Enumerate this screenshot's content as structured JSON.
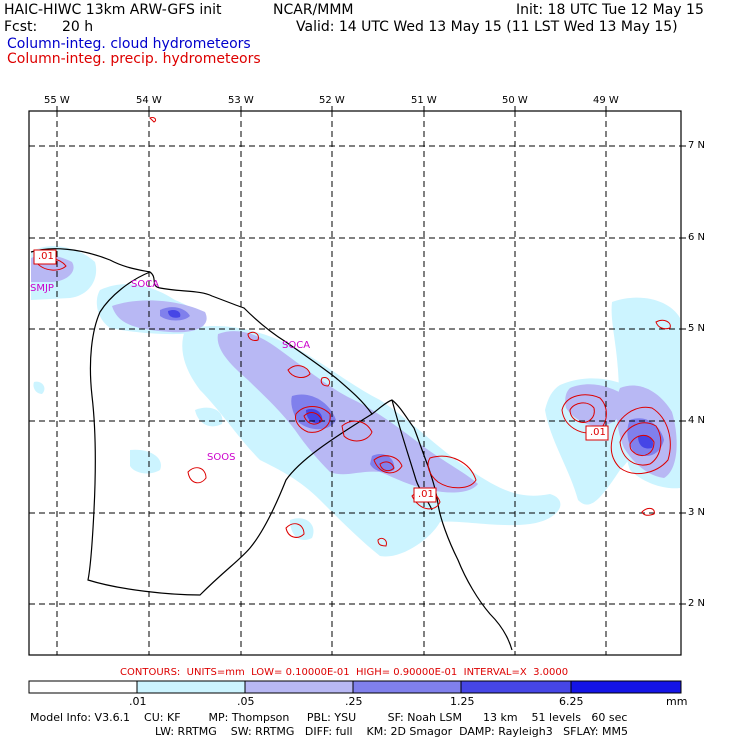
{
  "header": {
    "model_title": "HAIC-HIWC 13km ARW-GFS init",
    "org": "NCAR/MMM",
    "init": "Init: 18 UTC Tue 12 May 15",
    "fcst_label": "Fcst:",
    "fcst_value": "20 h",
    "valid": "Valid: 14 UTC Wed 13 May 15 (11 LST Wed 13 May 15)",
    "field_cloud": "Column-integ. cloud hydrometeors",
    "field_precip": "Column-integ. precip. hydrometeors"
  },
  "colors": {
    "cloud_text": "#0000cc",
    "precip_text": "#dd0000",
    "station_text": "#cc00cc",
    "shade_1": "#ccf4ff",
    "shade_2": "#b8b8f4",
    "shade_3": "#8080ec",
    "shade_4": "#4646e6",
    "shade_5": "#1414e6"
  },
  "map": {
    "lon_labels": [
      "55 W",
      "54 W",
      "53 W",
      "52 W",
      "51 W",
      "50 W",
      "49 W"
    ],
    "lat_labels": [
      "7 N",
      "6 N",
      "5 N",
      "4 N",
      "3 N",
      "2 N"
    ],
    "stations": [
      "SMJP",
      "SOCA",
      "SOCA",
      "SOOS"
    ],
    "contour_labels": [
      ".01",
      ".01",
      ".01"
    ]
  },
  "contour_info": "CONTOURS:  UNITS=mm  LOW= 0.10000E-01  HIGH= 0.90000E-01  INTERVAL=X  3.0000",
  "colorbar": {
    "tick_labels": [
      ".01",
      ".05",
      ".25",
      "1.25",
      "6.25"
    ],
    "units": "mm"
  },
  "model_info": {
    "line1": "Model Info: V3.6.1    CU: KF        MP: Thompson     PBL: YSU         SF: Noah LSM      13 km    51 levels   60 sec",
    "line2": "LW: RRTMG    SW: RRTMG   DIFF: full    KM: 2D Smagor  DAMP: Rayleigh3   SFLAY: MM5"
  }
}
